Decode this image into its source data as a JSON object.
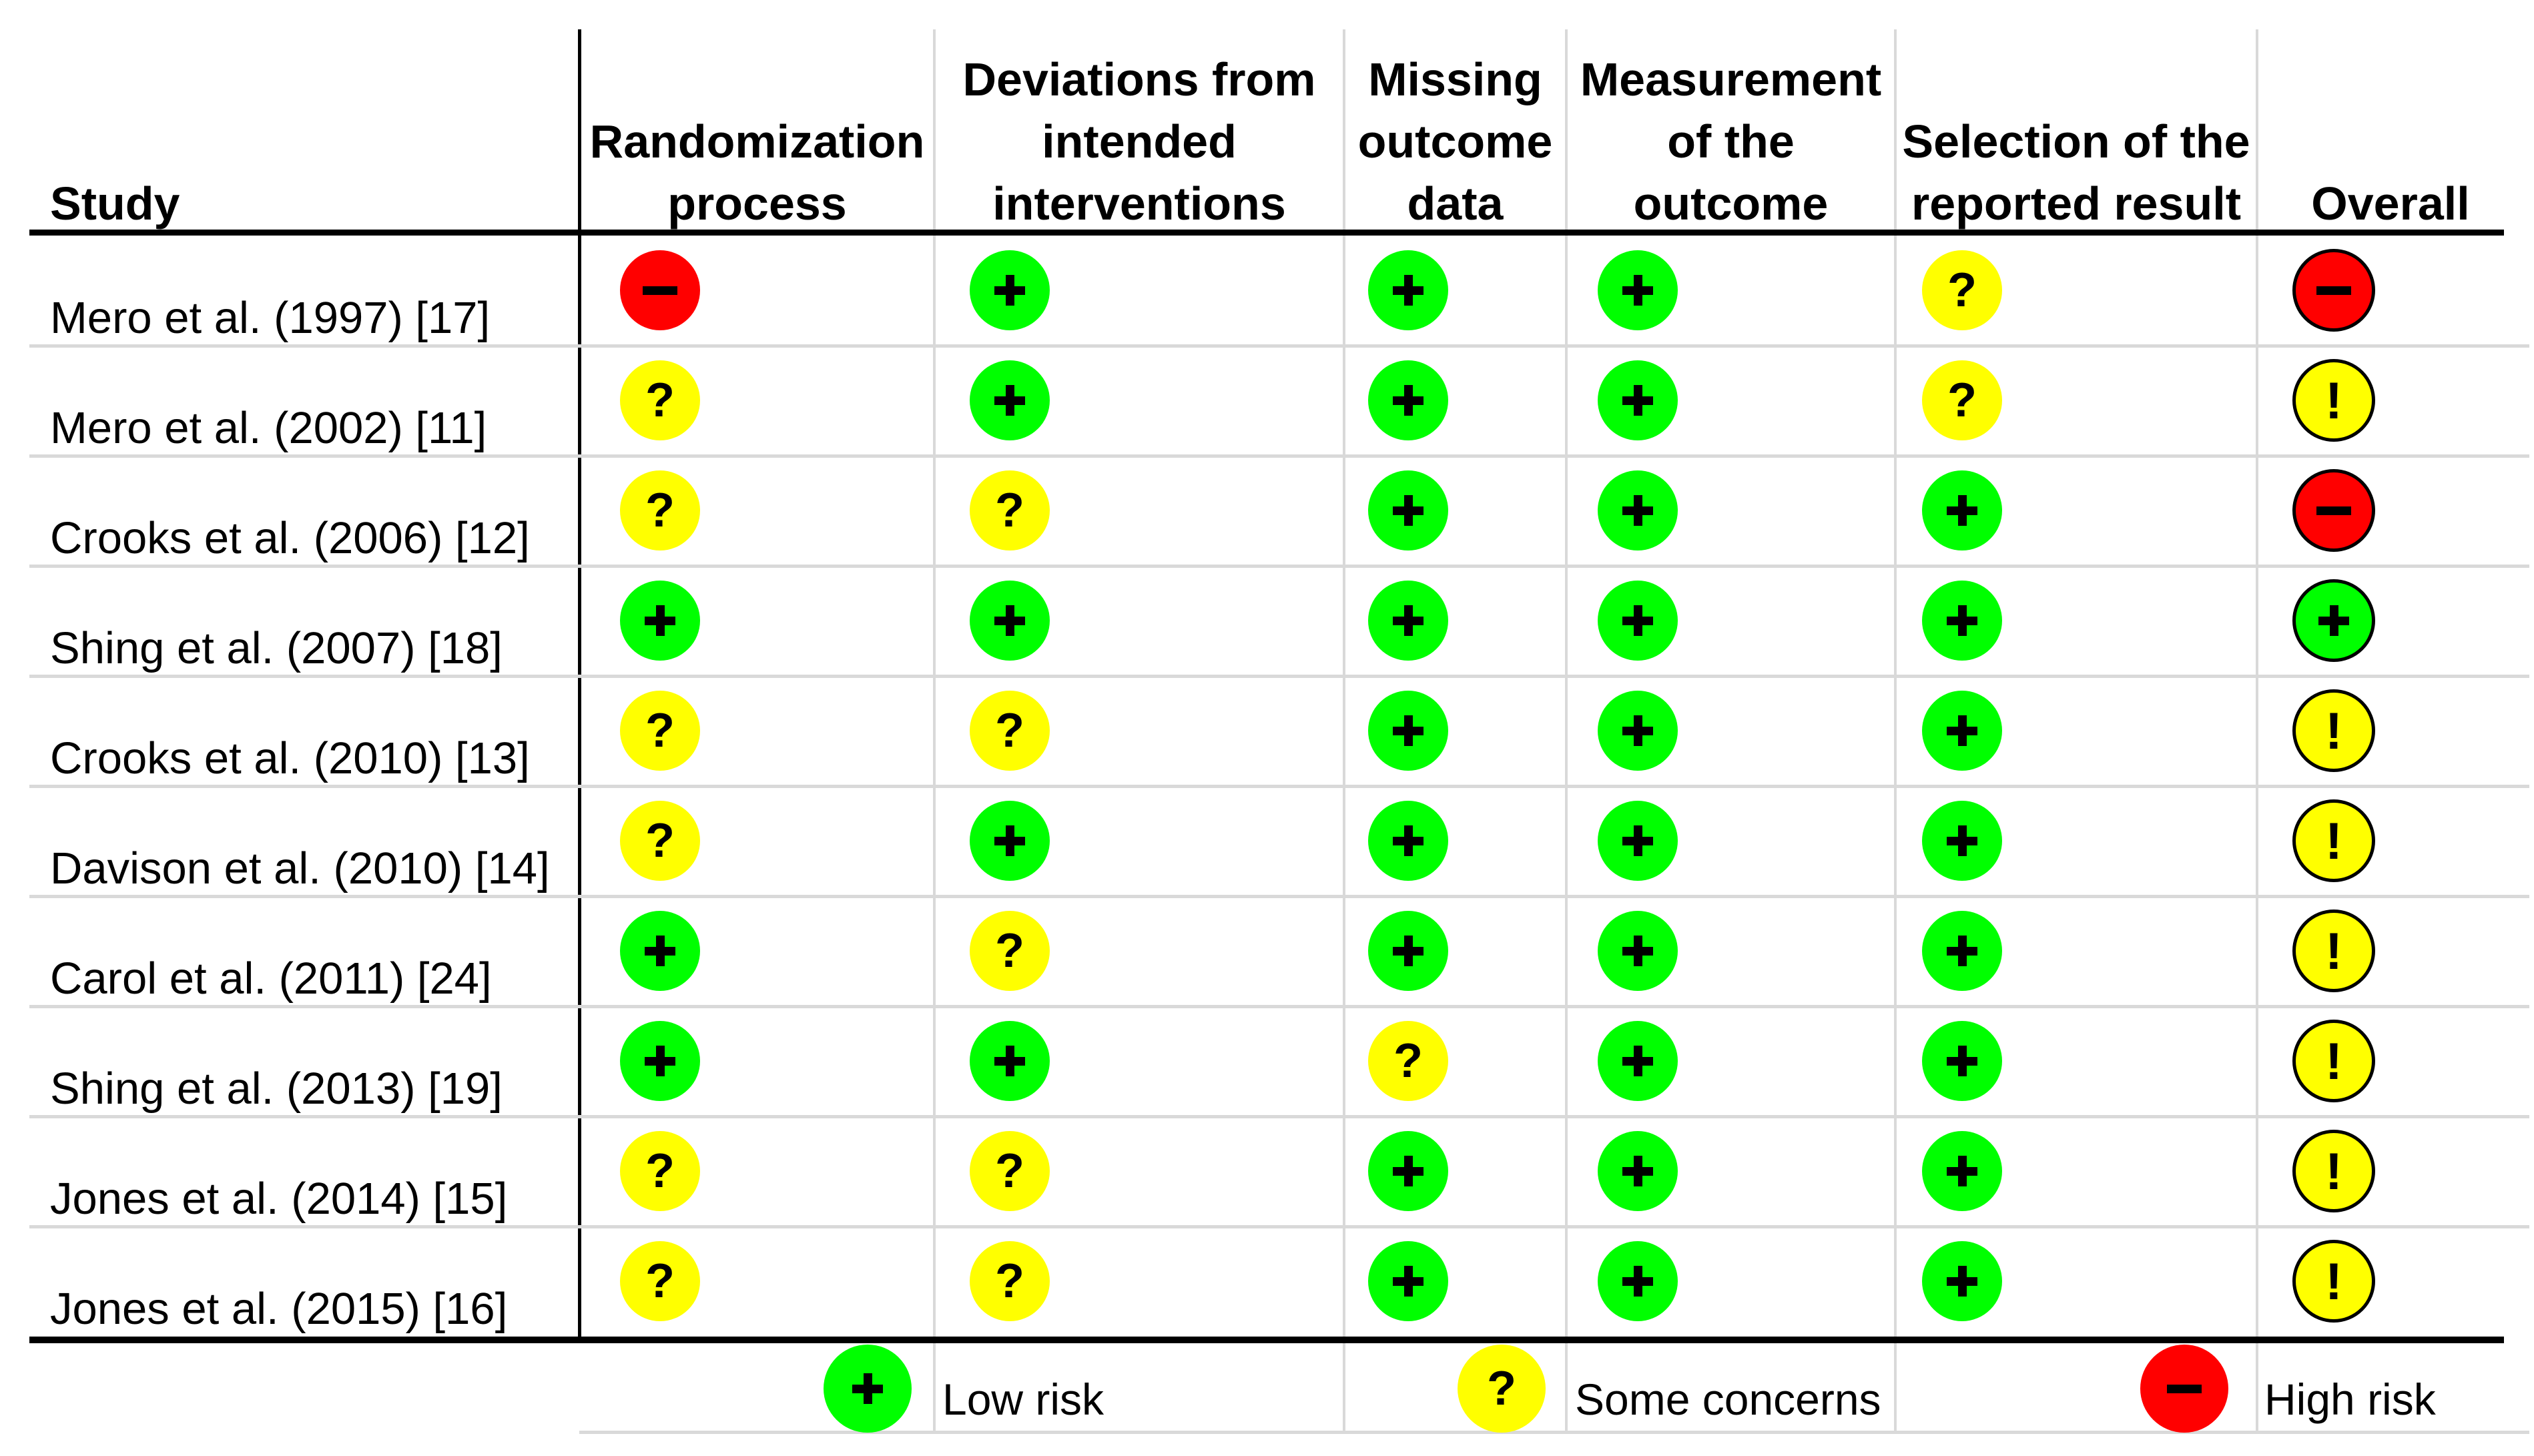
{
  "chart_data": {
    "type": "table",
    "title": "",
    "columns": [
      {
        "key": "study",
        "label": "Study",
        "lines": [
          "Study"
        ]
      },
      {
        "key": "randomization",
        "label": "Randomization process",
        "lines": [
          "Randomization",
          "process"
        ]
      },
      {
        "key": "deviations",
        "label": "Deviations from intended interventions",
        "lines": [
          "Deviations from",
          "intended",
          "interventions"
        ]
      },
      {
        "key": "missing",
        "label": "Missing outcome data",
        "lines": [
          "Missing",
          "outcome",
          "data"
        ]
      },
      {
        "key": "measurement",
        "label": "Measurement of the outcome",
        "lines": [
          "Measurement",
          "of the",
          "outcome"
        ]
      },
      {
        "key": "selection",
        "label": "Selection of the reported result",
        "lines": [
          "Selection of the",
          "reported result"
        ]
      },
      {
        "key": "overall",
        "label": "Overall",
        "lines": [
          "Overall"
        ]
      }
    ],
    "rows": [
      {
        "study": "Mero et al. (1997) [17]",
        "ratings": [
          "high",
          "low",
          "low",
          "low",
          "some",
          "high"
        ]
      },
      {
        "study": "Mero et al. (2002) [11]",
        "ratings": [
          "some",
          "low",
          "low",
          "low",
          "some",
          "some"
        ]
      },
      {
        "study": "Crooks et al. (2006) [12]",
        "ratings": [
          "some",
          "some",
          "low",
          "low",
          "low",
          "high"
        ]
      },
      {
        "study": "Shing et al. (2007) [18]",
        "ratings": [
          "low",
          "low",
          "low",
          "low",
          "low",
          "low"
        ]
      },
      {
        "study": "Crooks et al. (2010) [13]",
        "ratings": [
          "some",
          "some",
          "low",
          "low",
          "low",
          "some"
        ]
      },
      {
        "study": "Davison et al. (2010) [14]",
        "ratings": [
          "some",
          "low",
          "low",
          "low",
          "low",
          "some"
        ]
      },
      {
        "study": "Carol et al. (2011) [24]",
        "ratings": [
          "low",
          "some",
          "low",
          "low",
          "low",
          "some"
        ]
      },
      {
        "study": "Shing et al. (2013) [19]",
        "ratings": [
          "low",
          "low",
          "some",
          "low",
          "low",
          "some"
        ]
      },
      {
        "study": "Jones et al. (2014) [15]",
        "ratings": [
          "some",
          "some",
          "low",
          "low",
          "low",
          "some"
        ]
      },
      {
        "study": "Jones et al. (2015) [16]",
        "ratings": [
          "some",
          "some",
          "low",
          "low",
          "low",
          "some"
        ]
      }
    ],
    "legend": [
      {
        "rating": "low",
        "label": "Low risk"
      },
      {
        "rating": "some",
        "label": "Some concerns"
      },
      {
        "rating": "high",
        "label": "High risk"
      }
    ]
  },
  "ratings": {
    "low": {
      "label": "Low risk",
      "color": "#00FF00",
      "symbol": "+",
      "overall_symbol": "+"
    },
    "some": {
      "label": "Some concerns",
      "color": "#FFFF00",
      "symbol": "?",
      "overall_symbol": "!"
    },
    "high": {
      "label": "High risk",
      "color": "#FF0000",
      "symbol": "−",
      "overall_symbol": "−"
    }
  },
  "colors": {
    "low_risk": "#00FF00",
    "some_concerns": "#FFFF00",
    "high_risk": "#FF0000",
    "grid_gray": "#D9D9D9",
    "line_black": "#000000",
    "symbol": "#000000",
    "background": "#FFFFFF"
  }
}
